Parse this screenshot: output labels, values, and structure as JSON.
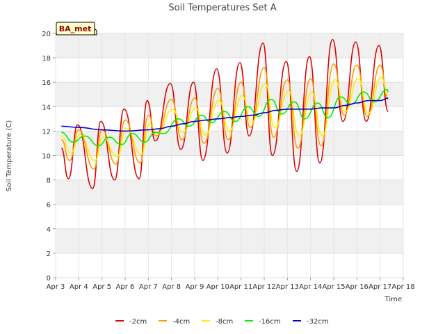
{
  "chart_data": {
    "type": "line",
    "title": "Soil Temperatures Set A",
    "xlabel": "Time",
    "ylabel": "Soil Temperature (C)",
    "site_label": "BA_met",
    "xlim": [
      3,
      18
    ],
    "ylim": [
      0,
      20
    ],
    "x_ticks": [
      {
        "v": 3,
        "label": "Apr 3"
      },
      {
        "v": 4,
        "label": "Apr 4"
      },
      {
        "v": 5,
        "label": "Apr 5"
      },
      {
        "v": 6,
        "label": "Apr 6"
      },
      {
        "v": 7,
        "label": "Apr 7"
      },
      {
        "v": 8,
        "label": "Apr 8"
      },
      {
        "v": 9,
        "label": "Apr 9"
      },
      {
        "v": 10,
        "label": "Apr 10"
      },
      {
        "v": 11,
        "label": "Apr 11"
      },
      {
        "v": 12,
        "label": "Apr 12"
      },
      {
        "v": 13,
        "label": "Apr 13"
      },
      {
        "v": 14,
        "label": "Apr 14"
      },
      {
        "v": 15,
        "label": "Apr 15"
      },
      {
        "v": 16,
        "label": "Apr 16"
      },
      {
        "v": 17,
        "label": "Apr 17"
      },
      {
        "v": 18,
        "label": "Apr 18"
      }
    ],
    "y_ticks": [
      0,
      2,
      4,
      6,
      8,
      10,
      12,
      14,
      16,
      18,
      20
    ],
    "grid": true,
    "legend_position": "bottom",
    "series": [
      {
        "name": "-2cm",
        "color": "#dd0000",
        "x": [
          3.25,
          3.55,
          3.95,
          4.6,
          4.95,
          5.55,
          5.95,
          6.6,
          6.95,
          7.3,
          7.95,
          8.4,
          8.95,
          9.35,
          9.95,
          10.4,
          10.95,
          11.35,
          11.95,
          12.35,
          12.95,
          13.4,
          13.95,
          14.4,
          14.95,
          15.4,
          15.95,
          16.4,
          16.95,
          17.35
        ],
        "y": [
          10.6,
          8.1,
          12.5,
          7.3,
          12.8,
          8.0,
          13.8,
          8.1,
          14.5,
          11.2,
          15.9,
          10.5,
          16.0,
          9.6,
          17.1,
          10.2,
          17.6,
          11.6,
          19.2,
          10.0,
          17.7,
          8.7,
          18.1,
          9.4,
          19.5,
          12.8,
          19.3,
          12.8,
          19.0,
          13.6
        ]
      },
      {
        "name": "-4cm",
        "color": "#ff9900",
        "x": [
          3.25,
          3.6,
          4.0,
          4.65,
          5.0,
          5.6,
          6.0,
          6.65,
          7.0,
          7.35,
          8.0,
          8.45,
          9.0,
          9.4,
          10.0,
          10.45,
          11.0,
          11.4,
          12.0,
          12.4,
          13.0,
          13.45,
          14.0,
          14.45,
          15.0,
          15.45,
          16.0,
          16.45,
          17.0,
          17.35
        ],
        "y": [
          11.3,
          9.6,
          12.1,
          8.9,
          12.1,
          9.3,
          12.9,
          9.4,
          13.3,
          11.6,
          14.6,
          11.3,
          14.7,
          11.0,
          15.5,
          11.3,
          16.0,
          12.3,
          17.2,
          11.5,
          16.2,
          10.6,
          16.3,
          10.8,
          17.5,
          13.3,
          17.4,
          13.2,
          17.4,
          14.6
        ]
      },
      {
        "name": "-8cm",
        "color": "#ffee00",
        "x": [
          3.25,
          3.65,
          4.05,
          4.7,
          5.05,
          5.65,
          6.05,
          6.7,
          7.05,
          7.4,
          8.05,
          8.5,
          9.05,
          9.45,
          10.05,
          10.5,
          11.05,
          11.45,
          12.05,
          12.45,
          13.05,
          13.5,
          14.05,
          14.5,
          15.05,
          15.5,
          16.05,
          16.5,
          17.05,
          17.35
        ],
        "y": [
          11.6,
          10.2,
          11.7,
          9.6,
          11.5,
          9.9,
          12.2,
          10.1,
          12.6,
          11.8,
          13.8,
          11.9,
          13.9,
          11.7,
          14.5,
          12.0,
          14.9,
          12.7,
          15.9,
          12.3,
          15.3,
          11.6,
          15.2,
          11.6,
          16.2,
          13.6,
          16.3,
          13.5,
          16.4,
          14.9
        ]
      },
      {
        "name": "-16cm",
        "color": "#00ee00",
        "x": [
          3.25,
          3.75,
          4.25,
          4.85,
          5.3,
          5.85,
          6.3,
          6.85,
          7.3,
          7.65,
          8.3,
          8.75,
          9.3,
          9.7,
          10.3,
          10.75,
          11.3,
          11.75,
          12.3,
          12.75,
          13.3,
          13.75,
          14.3,
          14.75,
          15.3,
          15.75,
          16.3,
          16.75,
          17.3,
          17.35
        ],
        "y": [
          11.9,
          11.1,
          11.6,
          10.8,
          11.5,
          10.9,
          11.8,
          11.1,
          11.9,
          11.8,
          13.0,
          12.4,
          13.3,
          12.7,
          13.6,
          12.8,
          14.0,
          13.2,
          14.6,
          13.4,
          14.4,
          13.0,
          14.3,
          13.1,
          14.8,
          14.2,
          15.2,
          14.4,
          15.4,
          15.2
        ]
      },
      {
        "name": "-32cm",
        "color": "#0000cc",
        "x": [
          3.25,
          4.0,
          5.0,
          6.0,
          7.0,
          7.5,
          8.0,
          8.5,
          9.0,
          9.5,
          10.0,
          10.5,
          11.0,
          11.5,
          12.0,
          12.5,
          13.0,
          13.5,
          14.0,
          14.5,
          15.0,
          15.5,
          16.0,
          16.5,
          17.0,
          17.35
        ],
        "y": [
          12.4,
          12.3,
          12.1,
          12.0,
          12.1,
          12.2,
          12.4,
          12.6,
          12.8,
          12.9,
          13.0,
          13.1,
          13.2,
          13.3,
          13.5,
          13.7,
          13.8,
          13.8,
          13.8,
          13.9,
          13.9,
          14.1,
          14.3,
          14.5,
          14.5,
          14.7
        ]
      }
    ]
  }
}
